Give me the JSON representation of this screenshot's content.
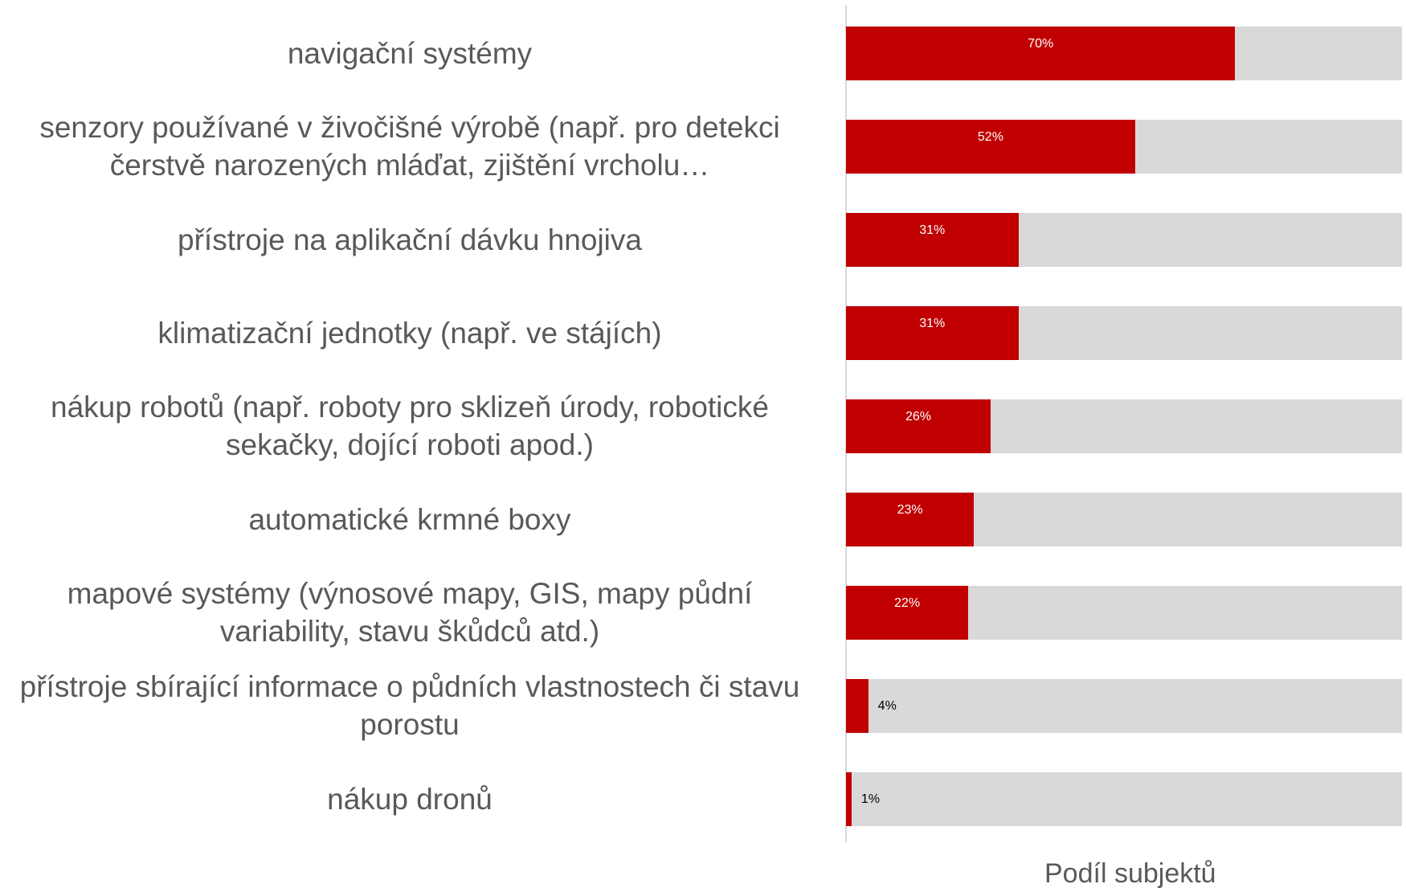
{
  "chart_data": {
    "type": "barh",
    "categories": [
      "navigační systémy",
      "senzory používané v živočišné výrobě (např. pro detekci čerstvě narozených mláďat, zjištění vrcholu…",
      "přístroje na aplikační dávku hnojiva",
      "klimatizační jednotky (např. ve stájích)",
      "nákup robotů (např. roboty pro sklizeň úrody, robotické sekačky, dojící roboti apod.)",
      "automatické krmné boxy",
      "mapové systémy (výnosové mapy, GIS, mapy půdní variability, stavu škůdců atd.)",
      "přístroje sbírající informace o půdních vlastnostech či stavu porostu",
      "nákup dronů"
    ],
    "values": [
      70,
      52,
      31,
      31,
      26,
      23,
      22,
      4,
      1
    ],
    "value_labels": [
      "70%",
      "52%",
      "31%",
      "31%",
      "26%",
      "23%",
      "22%",
      "4%",
      "1%"
    ],
    "color": "#c00000",
    "track_color": "#d9d9d9",
    "xlim": [
      0,
      100
    ],
    "xlabel": "Podíl subjektů"
  }
}
